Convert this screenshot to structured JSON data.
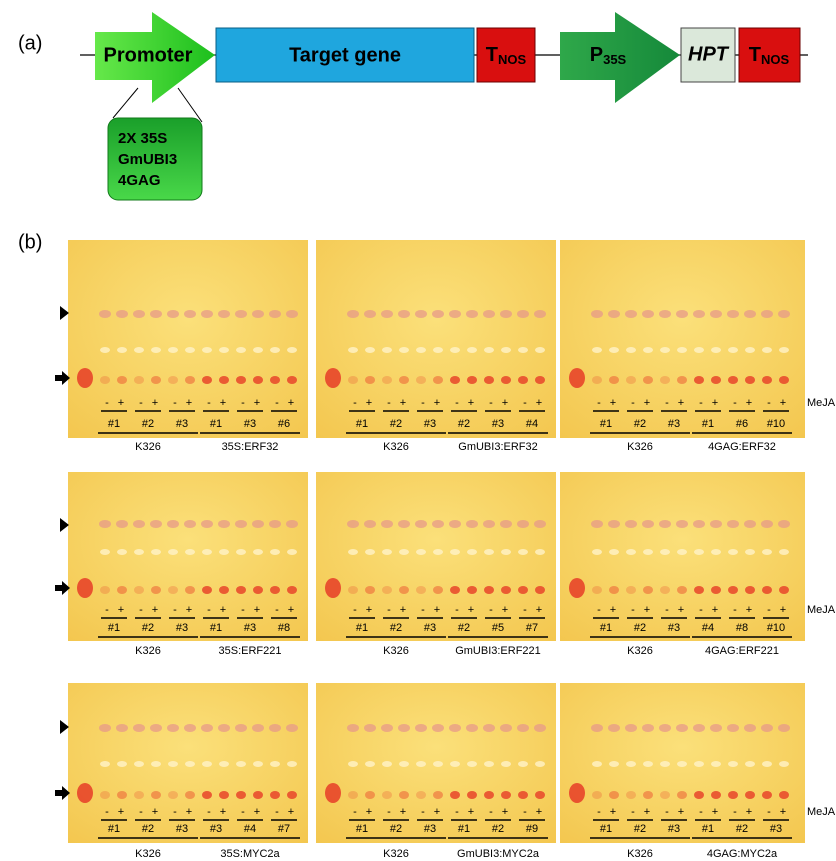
{
  "panel_a": {
    "label": "(a)",
    "promoter": "Promoter",
    "target": "Target gene",
    "terminator": {
      "main": "T",
      "sub": "NOS"
    },
    "p35s": {
      "main": "P",
      "sub": "35S"
    },
    "hpt": "HPT",
    "promoter_options": [
      "2X 35S",
      "GmUBI3",
      "4GAG"
    ]
  },
  "panel_b": {
    "label": "(b)",
    "treatment": "MeJA",
    "treatment_signs": [
      "-",
      "+"
    ],
    "control": "K326",
    "control_lines": [
      "#1",
      "#2",
      "#3"
    ],
    "plates": [
      {
        "construct": "35S:ERF32",
        "lines": [
          "#1",
          "#3",
          "#6"
        ]
      },
      {
        "construct": "GmUBI3:ERF32",
        "lines": [
          "#2",
          "#3",
          "#4"
        ]
      },
      {
        "construct": "4GAG:ERF32",
        "lines": [
          "#1",
          "#6",
          "#10"
        ]
      },
      {
        "construct": "35S:ERF221",
        "lines": [
          "#1",
          "#3",
          "#8"
        ]
      },
      {
        "construct": "GmUBI3:ERF221",
        "lines": [
          "#2",
          "#5",
          "#7"
        ]
      },
      {
        "construct": "4GAG:ERF221",
        "lines": [
          "#4",
          "#8",
          "#10"
        ]
      },
      {
        "construct": "35S:MYC2a",
        "lines": [
          "#3",
          "#4",
          "#7"
        ]
      },
      {
        "construct": "GmUBI3:MYC2a",
        "lines": [
          "#1",
          "#2",
          "#9"
        ]
      },
      {
        "construct": "4GAG:MYC2a",
        "lines": [
          "#1",
          "#2",
          "#3"
        ]
      }
    ]
  }
}
